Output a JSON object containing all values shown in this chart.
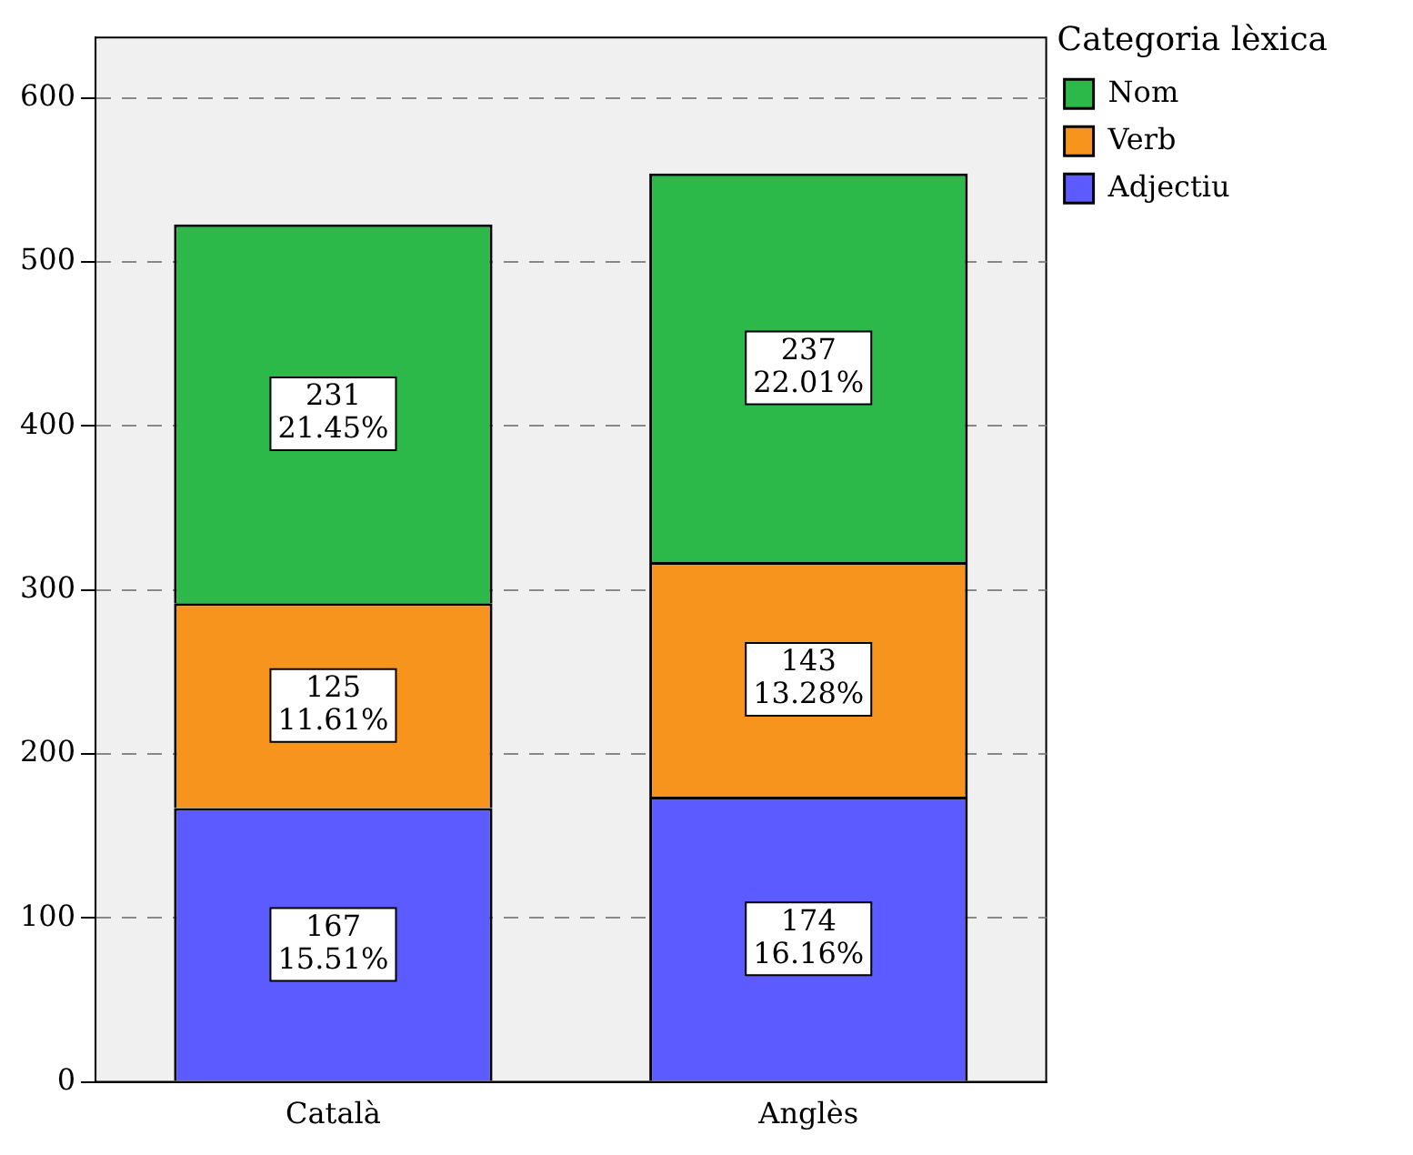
{
  "chart_data": {
    "type": "bar",
    "stacked": true,
    "categories": [
      "Català",
      "Anglès"
    ],
    "series": [
      {
        "name": "Adjectiu",
        "color": "#5b5bff",
        "values": [
          167,
          174
        ],
        "value_labels": [
          "167\n15.51%",
          "174\n16.16%"
        ]
      },
      {
        "name": "Verb",
        "color": "#f7941d",
        "values": [
          125,
          143
        ],
        "value_labels": [
          "125\n11.61%",
          "143\n13.28%"
        ]
      },
      {
        "name": "Nom",
        "color": "#2db84a",
        "values": [
          231,
          237
        ],
        "value_labels": [
          "231\n21.45%",
          "237\n22.01%"
        ]
      }
    ],
    "legend_title": "Categoria lèxica",
    "legend": "top right",
    "ylim": [
      0,
      637
    ],
    "yticks": [
      0,
      100,
      200,
      300,
      400,
      500,
      600
    ],
    "grid": "y"
  }
}
